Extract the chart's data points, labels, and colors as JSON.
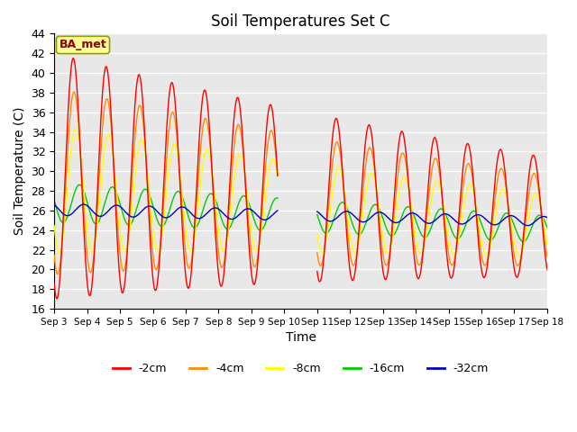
{
  "title": "Soil Temperatures Set C",
  "xlabel": "Time",
  "ylabel": "Soil Temperature (C)",
  "ylim": [
    16,
    44
  ],
  "yticks": [
    16,
    18,
    20,
    22,
    24,
    26,
    28,
    30,
    32,
    34,
    36,
    38,
    40,
    42,
    44
  ],
  "colors": {
    "-2cm": "#ff0000",
    "-4cm": "#ff8c00",
    "-8cm": "#ffff00",
    "-16cm": "#00cc00",
    "-32cm": "#0000cc"
  },
  "label_box": "BA_met",
  "plot_bg": "#e8e8e8",
  "fig_bg": "#ffffff",
  "legend_entries": [
    "-2cm",
    "-4cm",
    "-8cm",
    "-16cm",
    "-32cm"
  ],
  "n_days": 15,
  "figsize": [
    6.4,
    4.8
  ],
  "dpi": 100
}
